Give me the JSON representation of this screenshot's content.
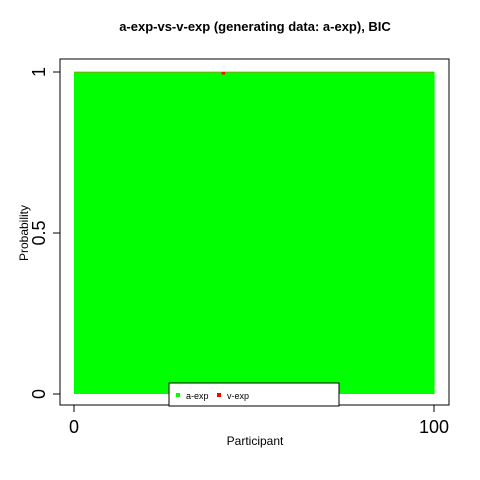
{
  "chart_data": {
    "type": "bar",
    "stacked": true,
    "title": "a-exp-vs-v-exp (generating data: a-exp), BIC",
    "xlabel": "Participant",
    "ylabel": "Probability",
    "xlim": [
      0,
      100
    ],
    "ylim": [
      0,
      1
    ],
    "x_ticks": [
      "0",
      "100"
    ],
    "y_ticks": [
      "0",
      "0.5",
      "1"
    ],
    "n_participants": 100,
    "series": [
      {
        "name": "a-exp",
        "color": "#00ff00",
        "value_all": 1.0,
        "exceptions": {
          "42": 0.992
        }
      },
      {
        "name": "v-exp",
        "color": "#ff0000",
        "value_all": 0.0,
        "exceptions": {
          "42": 0.008
        }
      }
    ],
    "legend": {
      "position": "bottom-center",
      "entries": [
        "a-exp",
        "v-exp"
      ]
    },
    "grid": false
  }
}
